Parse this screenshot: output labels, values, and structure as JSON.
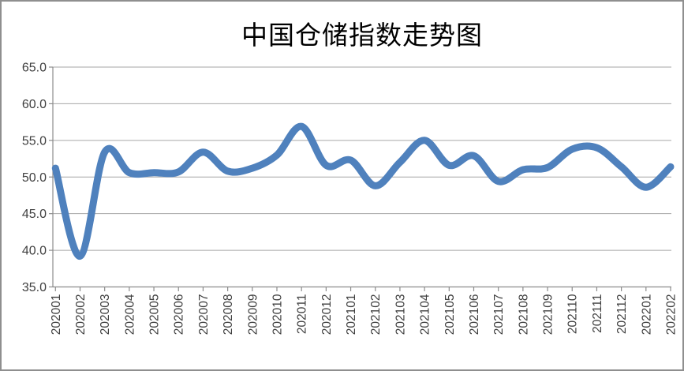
{
  "frame": {
    "background_color": "#ffffff",
    "border_color": "#8f8f8f"
  },
  "chart_data": {
    "type": "line",
    "title": "中国仓储指数走势图",
    "categories": [
      "202001",
      "202002",
      "202003",
      "202004",
      "202005",
      "202006",
      "202007",
      "202008",
      "202009",
      "202010",
      "202011",
      "202012",
      "202101",
      "202102",
      "202103",
      "202104",
      "202105",
      "202106",
      "202107",
      "202108",
      "202109",
      "202110",
      "202111",
      "202112",
      "202201",
      "202202"
    ],
    "values": [
      51.2,
      39.2,
      53.4,
      50.6,
      50.6,
      50.7,
      53.4,
      50.8,
      51.2,
      53.0,
      56.9,
      51.6,
      52.3,
      48.8,
      52.0,
      55.0,
      51.6,
      52.9,
      49.4,
      51.0,
      51.3,
      53.8,
      54.0,
      51.4,
      48.6,
      51.4
    ],
    "xlabel": "",
    "ylabel": "",
    "ylim": [
      35,
      65
    ],
    "ytick_step": 5,
    "ytick_labels": [
      "65.0",
      "60.0",
      "55.0",
      "50.0",
      "45.0",
      "40.0",
      "35.0"
    ],
    "grid": true,
    "legend": "none",
    "smooth": true,
    "line_color": "#4F81BD",
    "line_width": 9,
    "gridline_color": "#A6A6A6",
    "axis_color": "#8C8C8C",
    "label_color": "#3F3F3F",
    "title_color": "#000000"
  }
}
